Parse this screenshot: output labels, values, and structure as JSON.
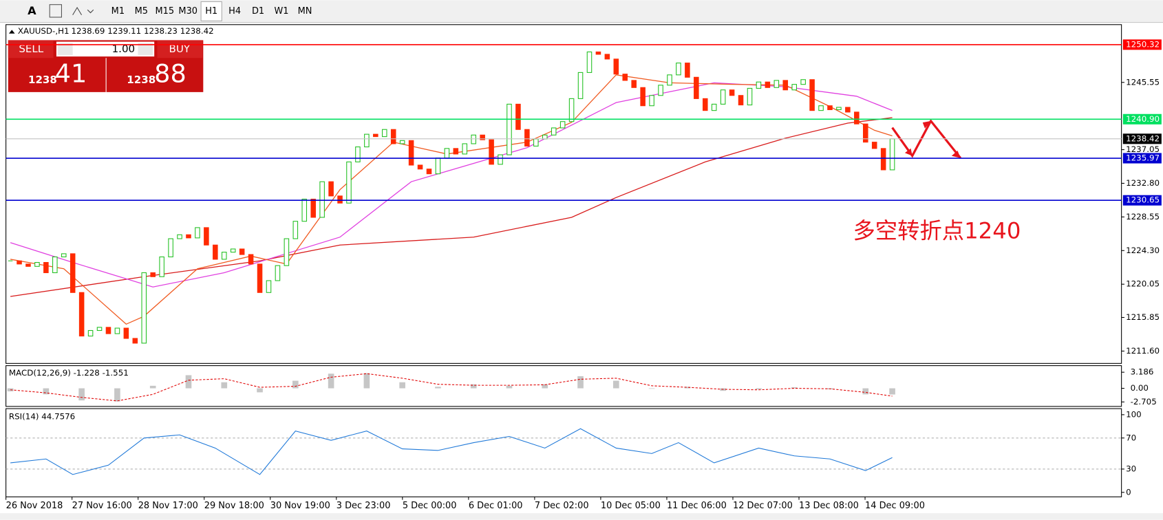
{
  "toolbar": {
    "text_tool": "A",
    "timeframes": [
      "M1",
      "M5",
      "M15",
      "M30",
      "H1",
      "H4",
      "D1",
      "W1",
      "MN"
    ],
    "active": "H1"
  },
  "trade_panel": {
    "sell": "SELL",
    "lots": "1.00",
    "buy": "BUY",
    "bid_small": "1238",
    "bid_big": "41",
    "ask_small": "1238",
    "ask_big": "88"
  },
  "chart_data": {
    "type": "candlestick",
    "symbol": "XAUUSD-,H1",
    "quote": "1238.69 1239.11 1238.23 1238.42",
    "up_color": "#22c022",
    "down_color": "#ff2a00",
    "close": [
      1223.0,
      1222.6,
      1222.3,
      1222.8,
      1221.5,
      1223.5,
      1223.9,
      1219,
      1213.5,
      1214.2,
      1214.6,
      1213.8,
      1214.5,
      1213.2,
      1212.6,
      1221.5,
      1221.0,
      1223.5,
      1225.8,
      1226.3,
      1225.9,
      1227.2,
      1225.0,
      1223.2,
      1224.1,
      1224.5,
      1223.8,
      1222.6,
      1219.0,
      1220.5,
      1222.4,
      1225.8,
      1228.0,
      1230.8,
      1228.5,
      1233.0,
      1231.2,
      1230.3,
      1235.5,
      1237.4,
      1239.0,
      1238.7,
      1239.6,
      1237.8,
      1238.2,
      1235.1,
      1234.6,
      1234.0,
      1236.0,
      1237.2,
      1236.5,
      1237.8,
      1238.9,
      1238.3,
      1235.2,
      1236.4,
      1242.8,
      1239.6,
      1237.5,
      1238.4,
      1238.9,
      1239.8,
      1240.6,
      1243.5,
      1246.8,
      1249.4,
      1249.1,
      1248.5,
      1246.6,
      1245.8,
      1244.9,
      1242.6,
      1243.9,
      1245.2,
      1246.5,
      1248.0,
      1246.2,
      1243.5,
      1242.0,
      1242.8,
      1244.6,
      1243.9,
      1242.7,
      1244.8,
      1245.6,
      1244.9,
      1245.8,
      1244.6,
      1245.3,
      1245.9,
      1242.0,
      1242.6,
      1242.1,
      1242.4,
      1241.8,
      1240.3,
      1238.0,
      1237.2,
      1234.5,
      1238.42
    ],
    "ylim": [
      1210.04,
      1252.85
    ],
    "yticks": [
      {
        "value": 1211.6,
        "label": "1211.60"
      },
      1215.85,
      1220.05,
      {
        "value": 1224.3,
        "label": "1224.30"
      },
      1228.55,
      {
        "value": 1232.8,
        "label": "1232.80"
      },
      1237.05,
      1245.55
    ],
    "levels": [
      {
        "value": 1250.32,
        "color": "#ff0000"
      },
      {
        "value": 1240.9,
        "label": "1240.90",
        "color": "#00e060"
      },
      {
        "value": 1235.97,
        "color": "#0000d0"
      },
      {
        "value": 1230.65,
        "color": "#0000d0"
      }
    ],
    "current": {
      "value": 1238.42,
      "color": "#c0c0c0"
    },
    "moving_averages": [
      {
        "color": "#d81a1a",
        "x": [
          0,
          15,
          28,
          37,
          52,
          63,
          68,
          78,
          87,
          94,
          99
        ],
        "values": [
          1218.5,
          1221,
          1223,
          1225,
          1226,
          1228.5,
          1231,
          1235.5,
          1238.5,
          1240.4,
          1241.1
        ]
      },
      {
        "color": "#e040e0",
        "x": [
          0,
          7,
          16,
          24,
          37,
          45,
          58,
          68,
          79,
          87,
          95,
          99
        ],
        "values": [
          1225.3,
          1222.8,
          1219.7,
          1221.5,
          1226,
          1233,
          1237.3,
          1243,
          1245.5,
          1245,
          1243.8,
          1242
        ]
      },
      {
        "color": "#f05a20",
        "x": [
          0,
          6,
          13,
          15,
          21,
          27,
          31,
          37,
          43,
          49,
          58,
          63,
          68,
          74,
          81,
          87,
          92,
          97,
          99
        ],
        "values": [
          1223.2,
          1222,
          1215,
          1216,
          1222,
          1223.6,
          1222.6,
          1232,
          1238,
          1236.5,
          1238,
          1240.5,
          1246.5,
          1245.5,
          1245.3,
          1245.2,
          1242.5,
          1239.5,
          1238.8
        ]
      }
    ],
    "time_labels": [
      "26 Nov 2018",
      "27 Nov 16:00",
      "28 Nov 17:00",
      "29 Nov 18:00",
      "30 Nov 19:00",
      "3 Dec 23:00",
      "5 Dec 00:00",
      "6 Dec 01:00",
      "7 Dec 02:00",
      "10 Dec 05:00",
      "11 Dec 06:00",
      "12 Dec 07:00",
      "13 Dec 08:00",
      "14 Dec 09:00"
    ],
    "annotation": "多空转折点1240",
    "macd": {
      "title": "MACD(12,26,9) -1.228 -1.551",
      "ylim": [
        -3.59,
        4.49
      ],
      "yticks": [
        3.186,
        {
          "value": 0,
          "label": "0.00"
        },
        -2.705
      ],
      "histogram": {
        "color": "#a0a0a0",
        "x": [
          0,
          4,
          8,
          12,
          16,
          20,
          24,
          28,
          32,
          36,
          40,
          44,
          48,
          52,
          56,
          60,
          64,
          68,
          72,
          76,
          80,
          84,
          88,
          92,
          96,
          99
        ],
        "values": [
          -0.6,
          -1.2,
          -2.4,
          -2.6,
          0.5,
          2.6,
          1.2,
          -0.8,
          1.5,
          2.9,
          3.0,
          1.2,
          0.3,
          0.8,
          0.5,
          0.8,
          2.4,
          1.5,
          -0.1,
          0.3,
          -0.5,
          -0.2,
          0.2,
          -0.2,
          -1.2,
          -1.228
        ]
      },
      "signal": {
        "color": "#e00000",
        "x": [
          0,
          4,
          8,
          12,
          16,
          20,
          24,
          28,
          32,
          36,
          40,
          44,
          48,
          52,
          56,
          60,
          64,
          68,
          72,
          76,
          80,
          84,
          88,
          92,
          96,
          99
        ],
        "values": [
          -0.3,
          -0.9,
          -1.8,
          -2.5,
          -1.2,
          1.6,
          1.9,
          0.2,
          0.4,
          2.2,
          2.9,
          2.0,
          0.8,
          0.6,
          0.6,
          0.7,
          1.8,
          2.0,
          0.5,
          0.2,
          -0.2,
          -0.3,
          0.0,
          -0.1,
          -0.8,
          -1.551
        ]
      }
    },
    "rsi": {
      "title": "RSI(14) 44.7576",
      "ylim": [
        -5.8,
        107.8
      ],
      "yticks": [
        100,
        70,
        30,
        0
      ],
      "levels": [
        70,
        30
      ],
      "color": "#1e78d8",
      "x": [
        0,
        4,
        7,
        11,
        15,
        19,
        23,
        28,
        32,
        36,
        40,
        44,
        48,
        52,
        56,
        60,
        64,
        68,
        72,
        75,
        79,
        84,
        88,
        92,
        96,
        99
      ],
      "values": [
        38,
        43,
        23,
        35,
        70,
        74,
        57,
        23,
        79,
        67,
        79,
        56,
        54,
        64,
        72,
        57,
        82,
        57,
        50,
        64,
        38,
        57,
        47,
        43,
        28,
        44.7576
      ]
    }
  }
}
